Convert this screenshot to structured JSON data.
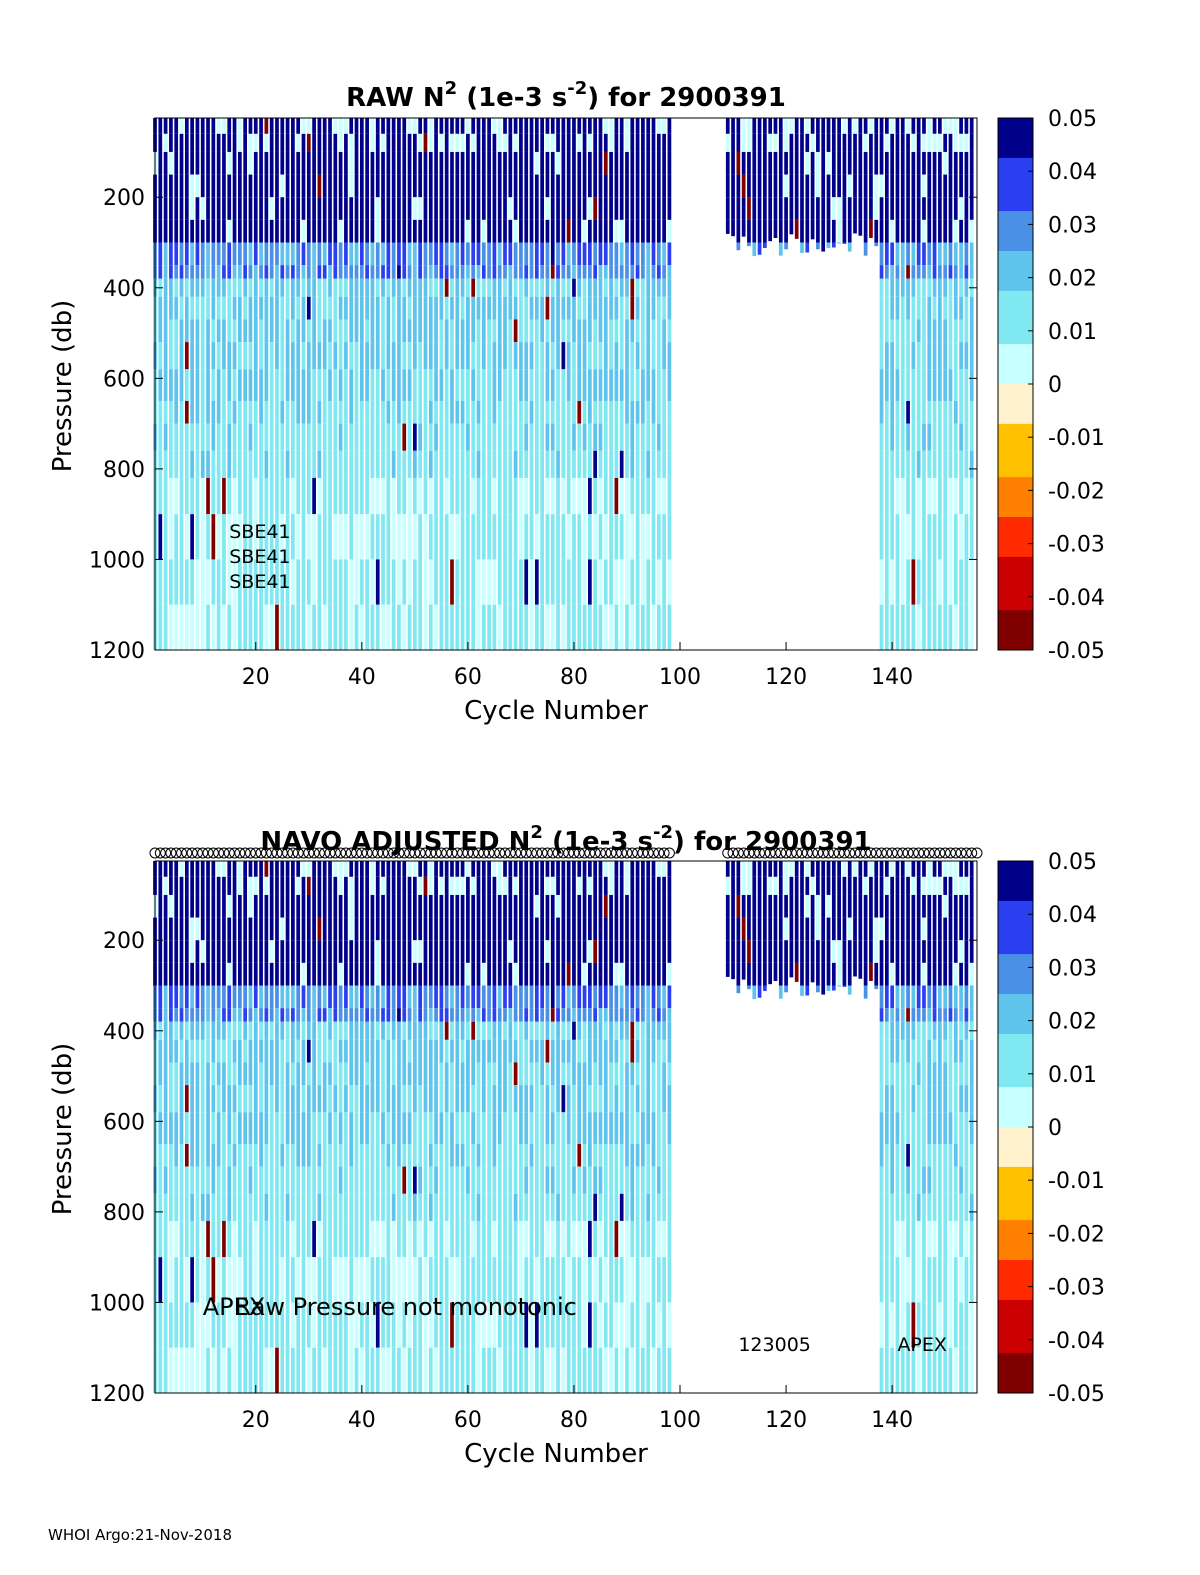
{
  "footer": "WHOI Argo:21-Nov-2018",
  "colormap": [
    "#800000",
    "#cc0000",
    "#ff2a00",
    "#ff8000",
    "#ffc000",
    "#fff2cc",
    "#c8ffff",
    "#7fe8f0",
    "#5ec4ec",
    "#4a90e6",
    "#2a40f0",
    "#00008b"
  ],
  "chart_data": [
    {
      "type": "heatmap",
      "title_prefix": "RAW N",
      "title_sup1": "2",
      "title_mid": " (1e-3 s",
      "title_sup2": "-2",
      "title_suffix": ") for 2900391",
      "xlabel": "Cycle Number",
      "ylabel": "Pressure (db)",
      "xlim": [
        1,
        156
      ],
      "ylim": [
        1200,
        25
      ],
      "xticks": [
        "20",
        "40",
        "60",
        "80",
        "100",
        "120",
        "140"
      ],
      "yticks": [
        "200",
        "400",
        "600",
        "800",
        "1000",
        "1200"
      ],
      "colorbar": {
        "range": [
          -0.05,
          0.05
        ],
        "ticks": [
          "0.05",
          "0.04",
          "0.03",
          "0.02",
          "0.01",
          "0",
          "-0.01",
          "-0.02",
          "-0.03",
          "-0.04",
          "-0.05"
        ]
      },
      "missing_cycles": [
        99,
        100,
        101,
        102,
        103,
        104,
        105,
        106,
        107,
        108
      ],
      "profile_depth_ranges": [
        {
          "cycles": [
            1,
            98
          ],
          "max_pressure": 1200
        },
        {
          "cycles": [
            109,
            137
          ],
          "max_pressure": 300
        },
        {
          "cycles": [
            138,
            155
          ],
          "max_pressure": 1200
        }
      ],
      "annotations": [
        {
          "text": "SBE41",
          "cycle": 15,
          "pressure": 935
        },
        {
          "text": "SBE41",
          "cycle": 15,
          "pressure": 990
        },
        {
          "text": "SBE41",
          "cycle": 15,
          "pressure": 1045
        }
      ],
      "markers": false
    },
    {
      "type": "heatmap",
      "title_prefix": "NAVO  ADJUSTED N",
      "title_sup1": "2",
      "title_mid": " (1e-3 s",
      "title_sup2": "-2",
      "title_suffix": ") for 2900391",
      "xlabel": "Cycle Number",
      "ylabel": "Pressure (db)",
      "xlim": [
        1,
        156
      ],
      "ylim": [
        1200,
        25
      ],
      "xticks": [
        "20",
        "40",
        "60",
        "80",
        "100",
        "120",
        "140"
      ],
      "yticks": [
        "200",
        "400",
        "600",
        "800",
        "1000",
        "1200"
      ],
      "colorbar": {
        "range": [
          -0.05,
          0.05
        ],
        "ticks": [
          "0.05",
          "0.04",
          "0.03",
          "0.02",
          "0.01",
          "0",
          "-0.01",
          "-0.02",
          "-0.03",
          "-0.04",
          "-0.05"
        ]
      },
      "missing_cycles": [
        99,
        100,
        101,
        102,
        103,
        104,
        105,
        106,
        107,
        108
      ],
      "profile_depth_ranges": [
        {
          "cycles": [
            1,
            98
          ],
          "max_pressure": 1200
        },
        {
          "cycles": [
            109,
            137
          ],
          "max_pressure": 300
        },
        {
          "cycles": [
            138,
            155
          ],
          "max_pressure": 1200
        }
      ],
      "annotations": [
        {
          "text": "APEX",
          "cycle": 10,
          "pressure": 1010
        },
        {
          "text": "Raw Pressure not monotonic",
          "cycle": 16,
          "pressure": 1010
        },
        {
          "text": "123005",
          "cycle": 111,
          "pressure": 1090
        },
        {
          "text": "APEX",
          "cycle": 141,
          "pressure": 1090
        }
      ],
      "markers": true
    }
  ]
}
